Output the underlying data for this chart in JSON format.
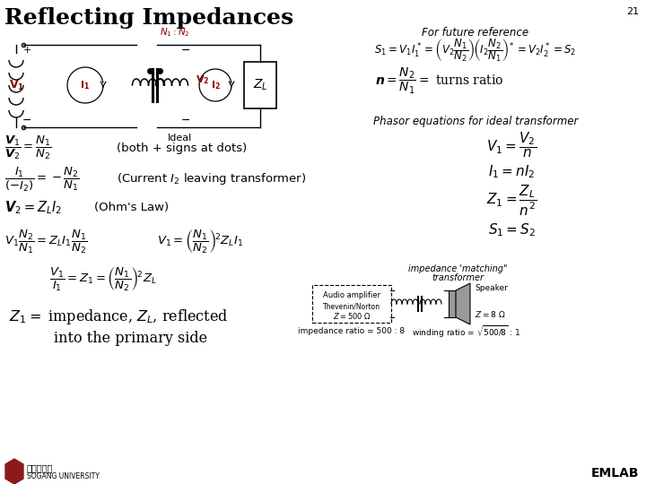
{
  "title": "Reflecting Impedances",
  "page_number": "21",
  "bg": "#ffffff",
  "emlab": "EMLAB",
  "for_future_ref": "For future reference",
  "phasor_label": "Phasor equations for ideal transformer",
  "eq_s1": "$S_1 = V_1I_1^* = \\left(V_2\\dfrac{N_1}{N_2}\\right)\\!\\left(I_2\\dfrac{N_2}{N_1}\\right)^{\\!*} = V_2I_2^* = S_2$",
  "eq_n": "$\\boldsymbol{n} = \\dfrac{N_2}{N_1} = $ turns ratio",
  "eq_v1v2": "$\\dfrac{\\boldsymbol{V}_1}{\\boldsymbol{V}_2} = \\dfrac{N_1}{N_2}$",
  "eq_v1v2_note": "(both + signs at dots)",
  "eq_i1i2": "$\\dfrac{I_1}{(-I_2)} = -\\dfrac{N_2}{N_1}$",
  "eq_i1i2_note": "(Current $I_2$ leaving transformer)",
  "eq_v2": "$\\boldsymbol{V}_2 = Z_L I_2$",
  "eq_v2_note": "(Ohm's Law)",
  "eq_mid1": "$V_1 \\dfrac{N_2}{N_1} = Z_L I_1 \\dfrac{N_1}{N_2}$",
  "eq_mid2": "$V_1 = \\left(\\dfrac{N_1}{N_2}\\right)^{\\!2} Z_L I_1$",
  "eq_v1i1": "$\\dfrac{V_1}{I_1} = Z_1 = \\left(\\dfrac{N_1}{N_2}\\right)^{\\!2} Z_L$",
  "eq_z1text1": "$Z_1 = $ impedance, $\\boldsymbol{Z_L}$, reflected",
  "eq_z1text2": "into the primary side",
  "ph1": "$V_1 = \\dfrac{V_2}{n}$",
  "ph2": "$I_1 = nI_2$",
  "ph3": "$Z_1 = \\dfrac{Z_L}{n^2}$",
  "ph4": "$S_1 = S_2$",
  "imp_match1": "impedance 'matching\"",
  "imp_match2": "transformer",
  "audio_amp": "Audio amplifier",
  "thevenin": "Thevenin/Norton",
  "z500": "$Z = 500\\ \\Omega$",
  "speaker_label": "Speaker",
  "z8": "$Z = 8\\ \\Omega$",
  "imp_ratio": "impedance ratio = 500 : 8",
  "wind_ratio": "winding ratio = $\\sqrt{500/8}$ : 1",
  "sogang_kr": "서강대학교",
  "sogang_en": "SOGANG UNIVERSITY"
}
